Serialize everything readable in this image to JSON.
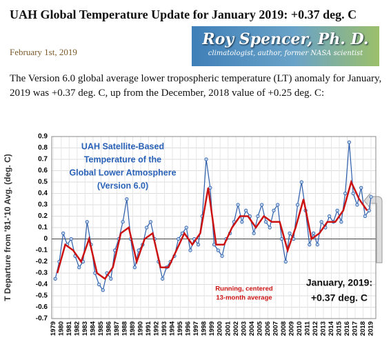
{
  "header": {
    "title": "UAH Global Temperature Update for January 2019: +0.37 deg. C",
    "date": "February 1st, 2019"
  },
  "logo": {
    "name": "Roy Spencer, Ph. D.",
    "tagline": "climatologist, author, former NASA scientist"
  },
  "paragraph": "The Version 6.0 global average lower tropospheric temperature (LT) anomaly for January, 2019 was +0.37 deg. C, up from the December, 2018 value of +0.25 deg. C:",
  "chart_data": {
    "type": "line",
    "y_label": "T Departure from '81-'10 Avg. (deg. C)",
    "annotations": {
      "title": [
        "UAH Satellite-Based",
        "Temperature of the",
        "Global Lower Atmosphere",
        "(Version 6.0)"
      ],
      "running": [
        "Running, centered",
        "13-month average"
      ],
      "latest": [
        "January, 2019:",
        "+0.37 deg. C"
      ]
    },
    "xlim": [
      1978.8,
      2019.6
    ],
    "ylim": [
      -0.7,
      0.9
    ],
    "xticks": [
      1979,
      1980,
      1981,
      1982,
      1983,
      1984,
      1985,
      1986,
      1987,
      1988,
      1989,
      1990,
      1991,
      1992,
      1993,
      1994,
      1995,
      1996,
      1997,
      1998,
      1999,
      2000,
      2001,
      2002,
      2003,
      2004,
      2005,
      2006,
      2007,
      2008,
      2009,
      2010,
      2011,
      2012,
      2013,
      2014,
      2015,
      2016,
      2017,
      2018,
      2019
    ],
    "yticks": [
      0.9,
      0.8,
      0.7,
      0.6,
      0.5,
      0.4,
      0.3,
      0.2,
      0.1,
      0,
      -0.1,
      -0.2,
      -0.3,
      -0.4,
      -0.5,
      -0.6,
      -0.7
    ],
    "grid": true,
    "series": [
      {
        "color": "#2a5caa",
        "x": [
          1979.25,
          1979.75,
          1980.25,
          1980.75,
          1981.25,
          1981.75,
          1982.25,
          1982.75,
          1983.25,
          1983.75,
          1984.25,
          1984.75,
          1985.25,
          1985.75,
          1986.25,
          1986.75,
          1987.25,
          1987.75,
          1988.25,
          1988.75,
          1989.25,
          1989.75,
          1990.25,
          1990.75,
          1991.25,
          1991.75,
          1992.25,
          1992.75,
          1993.25,
          1993.75,
          1994.25,
          1994.75,
          1995.25,
          1995.75,
          1996.25,
          1996.75,
          1997.25,
          1997.75,
          1998.25,
          1998.75,
          1999.25,
          1999.75,
          2000.25,
          2000.75,
          2001.25,
          2001.75,
          2002.25,
          2002.75,
          2003.25,
          2003.75,
          2004.25,
          2004.75,
          2005.25,
          2005.75,
          2006.25,
          2006.75,
          2007.25,
          2007.75,
          2008.25,
          2008.75,
          2009.25,
          2009.75,
          2010.25,
          2010.75,
          2011.25,
          2011.75,
          2012.25,
          2012.75,
          2013.25,
          2013.75,
          2014.25,
          2014.75,
          2015.25,
          2015.75,
          2016.25,
          2016.75,
          2017.25,
          2017.75,
          2018.25,
          2018.75,
          2019.0
        ],
        "values": [
          -0.35,
          -0.2,
          0.05,
          -0.05,
          0.0,
          -0.15,
          -0.25,
          -0.2,
          0.15,
          -0.05,
          -0.3,
          -0.4,
          -0.45,
          -0.3,
          -0.35,
          -0.1,
          0.0,
          0.15,
          0.35,
          0.0,
          -0.25,
          -0.1,
          -0.05,
          0.1,
          0.15,
          0.0,
          -0.2,
          -0.35,
          -0.25,
          -0.2,
          -0.15,
          0.0,
          0.05,
          0.1,
          -0.1,
          0.0,
          -0.05,
          0.2,
          0.7,
          0.45,
          -0.05,
          -0.1,
          -0.15,
          0.0,
          0.05,
          0.15,
          0.3,
          0.15,
          0.25,
          0.2,
          0.05,
          0.2,
          0.3,
          0.15,
          0.1,
          0.25,
          0.3,
          0.0,
          -0.2,
          0.05,
          0.0,
          0.3,
          0.5,
          0.25,
          -0.05,
          0.05,
          -0.05,
          0.15,
          0.1,
          0.2,
          0.15,
          0.25,
          0.15,
          0.4,
          0.85,
          0.4,
          0.3,
          0.45,
          0.2,
          0.25,
          0.37
        ]
      },
      {
        "color": "#cc1111",
        "x": [
          1979.5,
          1980.5,
          1981.5,
          1982.5,
          1983.5,
          1984.5,
          1985.5,
          1986.5,
          1987.5,
          1988.5,
          1989.5,
          1990.5,
          1991.5,
          1992.5,
          1993.5,
          1994.5,
          1995.5,
          1996.5,
          1997.5,
          1998.5,
          1999.5,
          2000.5,
          2001.5,
          2002.5,
          2003.5,
          2004.5,
          2005.5,
          2006.5,
          2007.5,
          2008.5,
          2009.5,
          2010.5,
          2011.5,
          2012.5,
          2013.5,
          2014.5,
          2015.5,
          2016.5,
          2017.5,
          2018.5
        ],
        "values": [
          -0.3,
          -0.05,
          -0.1,
          -0.2,
          0.0,
          -0.3,
          -0.35,
          -0.25,
          0.05,
          0.1,
          -0.2,
          0.0,
          0.05,
          -0.25,
          -0.25,
          -0.1,
          0.05,
          -0.05,
          0.05,
          0.45,
          -0.05,
          -0.05,
          0.1,
          0.2,
          0.2,
          0.1,
          0.2,
          0.15,
          0.15,
          -0.1,
          0.1,
          0.35,
          0.0,
          0.05,
          0.15,
          0.15,
          0.25,
          0.5,
          0.35,
          0.25
        ]
      }
    ]
  }
}
